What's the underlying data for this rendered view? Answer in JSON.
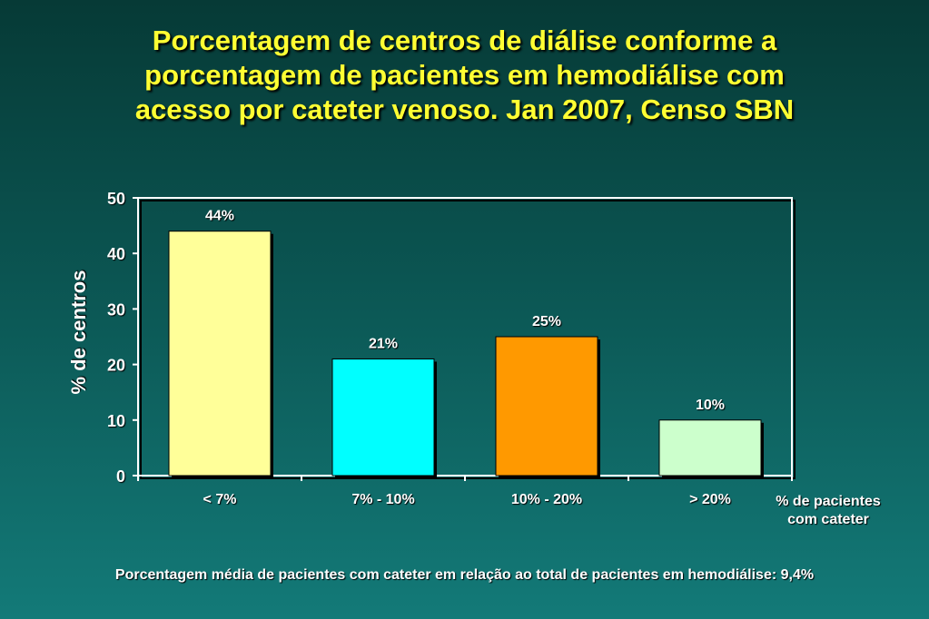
{
  "title_lines": [
    "Porcentagem de centros de diálise conforme a",
    "porcentagem de pacientes em hemodiálise com",
    "acesso por cateter venoso. Jan 2007, Censo SBN"
  ],
  "chart_data": {
    "type": "bar",
    "categories": [
      "< 7%",
      "7% - 10%",
      "10% - 20%",
      "> 20%"
    ],
    "values": [
      44,
      21,
      25,
      10
    ],
    "data_labels": [
      "44%",
      "21%",
      "25%",
      "10%"
    ],
    "colors": [
      "#ffff99",
      "#00ffff",
      "#ff9900",
      "#ccffcc"
    ],
    "ylabel": "% de centros",
    "xlabel_lines": [
      "% de pacientes",
      "com cateter"
    ],
    "ylim": [
      0,
      50
    ],
    "yticks": [
      0,
      10,
      20,
      30,
      40,
      50
    ],
    "grid": false,
    "legend": "none"
  },
  "footnote": "Porcentagem  média de pacientes com cateter em relação ao total de pacientes em hemodiálise: 9,4%"
}
